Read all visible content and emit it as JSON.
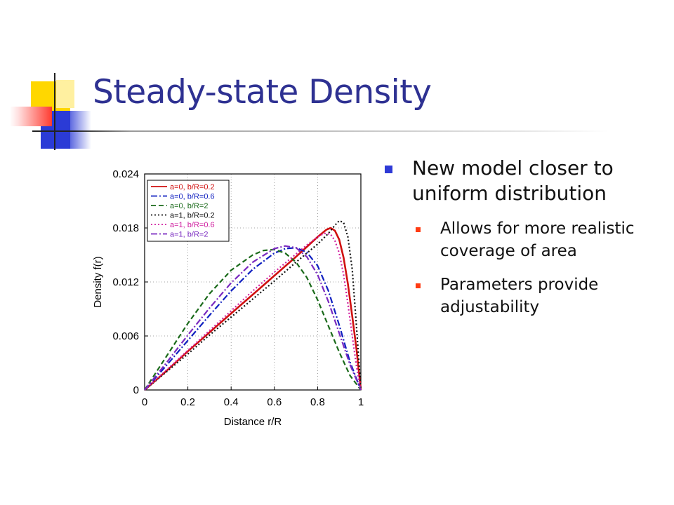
{
  "slide": {
    "title": "Steady-state Density",
    "bullets": [
      {
        "text": "New model closer to uniform distribution",
        "sub": [
          "Allows for more realistic coverage of area",
          "Parameters provide adjustability"
        ]
      }
    ]
  },
  "chart_data": {
    "type": "line",
    "xlabel": "Distance r/R",
    "ylabel": "Density f(r)",
    "xlim": [
      0,
      1
    ],
    "ylim": [
      0,
      0.024
    ],
    "xticks": [
      "0",
      "0.2",
      "0.4",
      "0.6",
      "0.8",
      "1"
    ],
    "yticks": [
      "0",
      "0.006",
      "0.012",
      "0.018",
      "0.024"
    ],
    "grid": true,
    "legend_position": "top-left",
    "series": [
      {
        "name": "a=0, b/R=0.2",
        "color": "#d01010",
        "dash": "solid",
        "x": [
          0,
          0.1,
          0.2,
          0.3,
          0.4,
          0.5,
          0.6,
          0.7,
          0.75,
          0.8,
          0.84,
          0.86,
          0.88,
          0.9,
          0.92,
          0.94,
          0.96,
          0.98,
          1.0
        ],
        "y": [
          0,
          0.0021,
          0.0043,
          0.0064,
          0.0085,
          0.0106,
          0.0127,
          0.0148,
          0.0159,
          0.017,
          0.0178,
          0.018,
          0.0177,
          0.0167,
          0.0147,
          0.0118,
          0.0082,
          0.0045,
          0
        ]
      },
      {
        "name": "a=0, b/R=0.6",
        "color": "#1020c0",
        "dash": "dashdot",
        "x": [
          0,
          0.1,
          0.2,
          0.3,
          0.4,
          0.5,
          0.6,
          0.65,
          0.7,
          0.75,
          0.8,
          0.85,
          0.9,
          0.95,
          1.0
        ],
        "y": [
          0,
          0.0027,
          0.0055,
          0.0083,
          0.011,
          0.0134,
          0.0152,
          0.0157,
          0.0158,
          0.0153,
          0.0138,
          0.011,
          0.0072,
          0.0031,
          0
        ]
      },
      {
        "name": "a=0, b/R=2",
        "color": "#1a6a1a",
        "dash": "dash",
        "x": [
          0,
          0.1,
          0.2,
          0.3,
          0.4,
          0.5,
          0.55,
          0.6,
          0.65,
          0.7,
          0.75,
          0.8,
          0.85,
          0.9,
          0.95,
          1.0
        ],
        "y": [
          0,
          0.0037,
          0.0074,
          0.0107,
          0.0133,
          0.015,
          0.0155,
          0.0156,
          0.0152,
          0.0142,
          0.0125,
          0.01,
          0.0071,
          0.0042,
          0.0016,
          0
        ]
      },
      {
        "name": "a=1, b/R=0.2",
        "color": "#111111",
        "dash": "dot",
        "x": [
          0,
          0.1,
          0.2,
          0.3,
          0.4,
          0.5,
          0.6,
          0.7,
          0.8,
          0.85,
          0.88,
          0.9,
          0.92,
          0.94,
          0.96,
          0.98,
          1.0
        ],
        "y": [
          0,
          0.002,
          0.004,
          0.0061,
          0.0081,
          0.0101,
          0.0121,
          0.0142,
          0.0162,
          0.0174,
          0.0183,
          0.0188,
          0.0186,
          0.017,
          0.0134,
          0.007,
          0
        ]
      },
      {
        "name": "a=1, b/R=0.6",
        "color": "#d020a0",
        "dash": "dot",
        "x": [
          0,
          0.1,
          0.2,
          0.3,
          0.4,
          0.5,
          0.6,
          0.7,
          0.75,
          0.8,
          0.83,
          0.86,
          0.88,
          0.9,
          0.92,
          0.94,
          0.96,
          0.98,
          1.0
        ],
        "y": [
          0,
          0.0022,
          0.0044,
          0.0066,
          0.0088,
          0.011,
          0.0131,
          0.0151,
          0.0161,
          0.017,
          0.0174,
          0.0173,
          0.0166,
          0.0152,
          0.0128,
          0.0096,
          0.006,
          0.0026,
          0
        ]
      },
      {
        "name": "a=1, b/R=2",
        "color": "#7a2ac0",
        "dash": "dashdot",
        "x": [
          0,
          0.1,
          0.2,
          0.3,
          0.4,
          0.5,
          0.6,
          0.65,
          0.7,
          0.75,
          0.8,
          0.85,
          0.9,
          0.95,
          1.0
        ],
        "y": [
          0,
          0.003,
          0.0061,
          0.0091,
          0.0119,
          0.0142,
          0.0157,
          0.016,
          0.0158,
          0.0148,
          0.0128,
          0.0098,
          0.0063,
          0.0028,
          0
        ]
      }
    ]
  }
}
